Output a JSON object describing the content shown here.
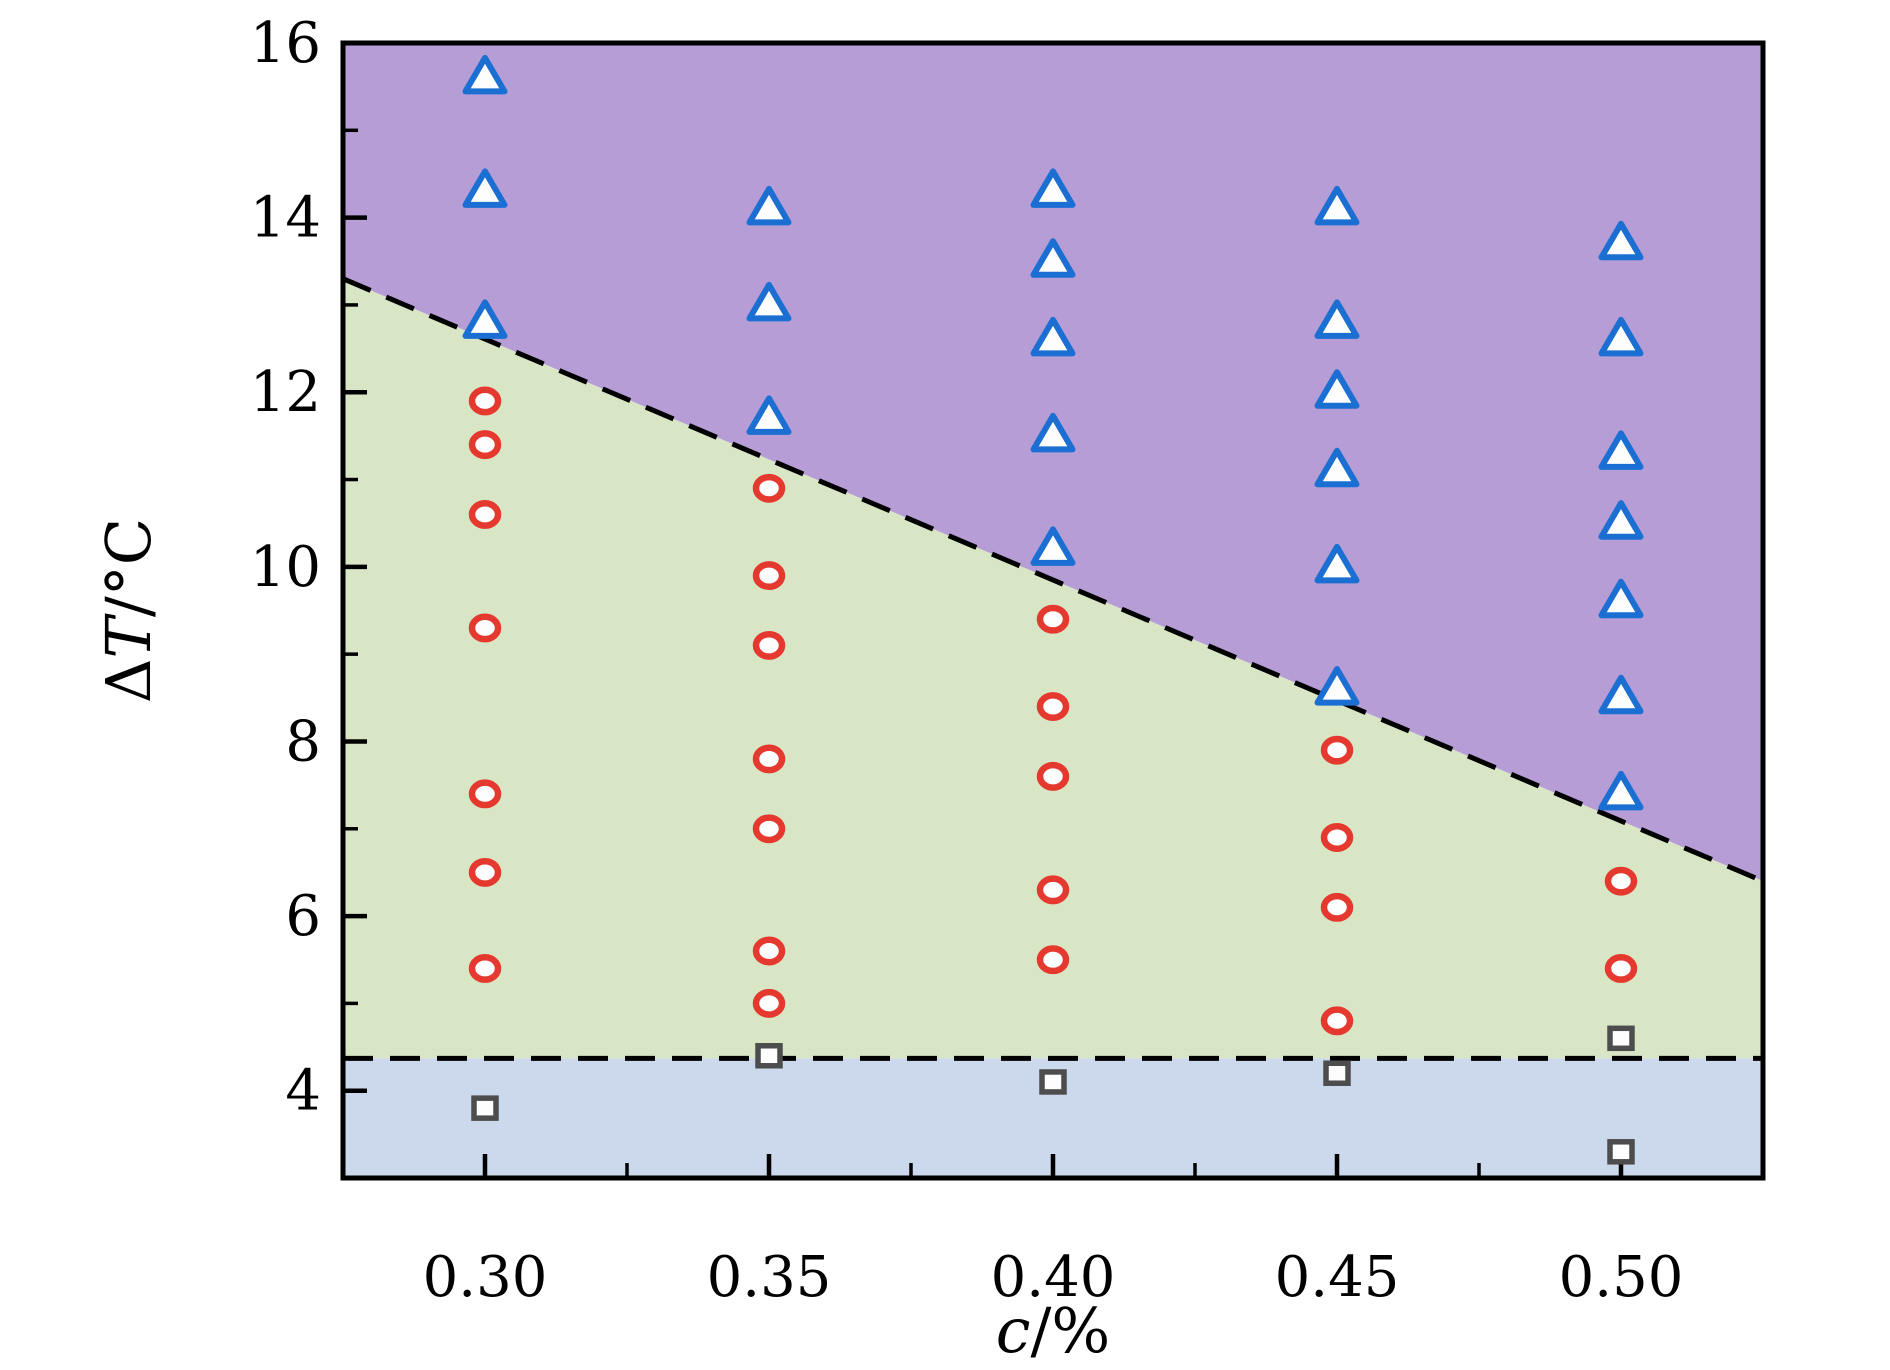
{
  "figure": {
    "background": "#ffffff",
    "frame_color": "#000000",
    "boundary_line_color": "#000000"
  },
  "chart_data": {
    "type": "scatter",
    "title": "",
    "xlabel_parts": [
      {
        "t": "c",
        "italic": true
      },
      {
        "t": "/%",
        "italic": false
      }
    ],
    "ylabel_parts": [
      {
        "t": "Δ",
        "italic": false
      },
      {
        "t": "T",
        "italic": true
      },
      {
        "t": "/°C",
        "italic": false
      }
    ],
    "xlabel_text": "c/%",
    "ylabel_text": "ΔT/°C",
    "xlim": [
      0.275,
      0.525
    ],
    "ylim": [
      3,
      16
    ],
    "grid": false,
    "legend": "none",
    "x_major_ticks": [
      0.3,
      0.35,
      0.4,
      0.45,
      0.5
    ],
    "x_tick_labels": [
      "0.30",
      "0.35",
      "0.40",
      "0.45",
      "0.50"
    ],
    "x_minor_ticks": [
      0.325,
      0.375,
      0.425,
      0.475
    ],
    "y_major_ticks": [
      4,
      6,
      8,
      10,
      12,
      14,
      16
    ],
    "y_tick_labels": [
      "4",
      "6",
      "8",
      "10",
      "12",
      "14",
      "16"
    ],
    "y_minor_ticks": [
      5,
      7,
      9,
      11,
      13,
      15
    ],
    "regions": [
      {
        "name": "region-upper-purple",
        "fill": "#b69dd6",
        "polygon": [
          [
            0.275,
            16
          ],
          [
            0.525,
            16
          ],
          [
            0.525,
            6.4
          ],
          [
            0.275,
            13.3
          ]
        ]
      },
      {
        "name": "region-middle-green",
        "fill": "#d8e6c5",
        "polygon": [
          [
            0.275,
            13.3
          ],
          [
            0.525,
            6.4
          ],
          [
            0.525,
            4.37
          ],
          [
            0.275,
            4.37
          ]
        ]
      },
      {
        "name": "region-lower-blue",
        "fill": "#ccd8ec",
        "polygon": [
          [
            0.275,
            4.37
          ],
          [
            0.525,
            4.37
          ],
          [
            0.525,
            3
          ],
          [
            0.275,
            3
          ]
        ]
      }
    ],
    "boundaries": [
      {
        "name": "phase-boundary-diagonal",
        "style": "dashed",
        "color": "#000000",
        "from": [
          0.275,
          13.3
        ],
        "to": [
          0.525,
          6.4
        ]
      },
      {
        "name": "phase-boundary-horizontal",
        "style": "dashed",
        "color": "#000000",
        "from": [
          0.275,
          4.37
        ],
        "to": [
          0.525,
          4.37
        ]
      }
    ],
    "series": [
      {
        "name": "triangle-markers",
        "marker": "triangle",
        "stroke": "#1b6fd3",
        "fill": "#fdfdfd",
        "points": [
          [
            0.3,
            15.6
          ],
          [
            0.3,
            14.3
          ],
          [
            0.3,
            12.8
          ],
          [
            0.35,
            14.1
          ],
          [
            0.35,
            13.0
          ],
          [
            0.35,
            11.7
          ],
          [
            0.4,
            14.3
          ],
          [
            0.4,
            13.5
          ],
          [
            0.4,
            12.6
          ],
          [
            0.4,
            11.5
          ],
          [
            0.4,
            10.2
          ],
          [
            0.45,
            14.1
          ],
          [
            0.45,
            12.8
          ],
          [
            0.45,
            12.0
          ],
          [
            0.45,
            11.1
          ],
          [
            0.45,
            10.0
          ],
          [
            0.45,
            8.6
          ],
          [
            0.5,
            13.7
          ],
          [
            0.5,
            12.6
          ],
          [
            0.5,
            11.3
          ],
          [
            0.5,
            10.5
          ],
          [
            0.5,
            9.6
          ],
          [
            0.5,
            8.5
          ],
          [
            0.5,
            7.4
          ]
        ]
      },
      {
        "name": "circle-markers",
        "marker": "circle",
        "stroke": "#e5392f",
        "fill": "#fdfdfd",
        "points": [
          [
            0.3,
            11.9
          ],
          [
            0.3,
            11.4
          ],
          [
            0.3,
            10.6
          ],
          [
            0.3,
            9.3
          ],
          [
            0.3,
            7.4
          ],
          [
            0.3,
            6.5
          ],
          [
            0.3,
            5.4
          ],
          [
            0.35,
            10.9
          ],
          [
            0.35,
            9.9
          ],
          [
            0.35,
            9.1
          ],
          [
            0.35,
            7.8
          ],
          [
            0.35,
            7.0
          ],
          [
            0.35,
            5.6
          ],
          [
            0.35,
            5.0
          ],
          [
            0.4,
            9.4
          ],
          [
            0.4,
            8.4
          ],
          [
            0.4,
            7.6
          ],
          [
            0.4,
            6.3
          ],
          [
            0.4,
            5.5
          ],
          [
            0.45,
            7.9
          ],
          [
            0.45,
            6.9
          ],
          [
            0.45,
            6.1
          ],
          [
            0.45,
            4.8
          ],
          [
            0.5,
            6.4
          ],
          [
            0.5,
            5.4
          ]
        ]
      },
      {
        "name": "square-markers",
        "marker": "square",
        "stroke": "#4d4d4d",
        "fill": "#fdfdfd",
        "points": [
          [
            0.3,
            3.8
          ],
          [
            0.35,
            4.4
          ],
          [
            0.4,
            4.1
          ],
          [
            0.45,
            4.2
          ],
          [
            0.5,
            4.6
          ],
          [
            0.5,
            3.3
          ]
        ]
      }
    ]
  }
}
